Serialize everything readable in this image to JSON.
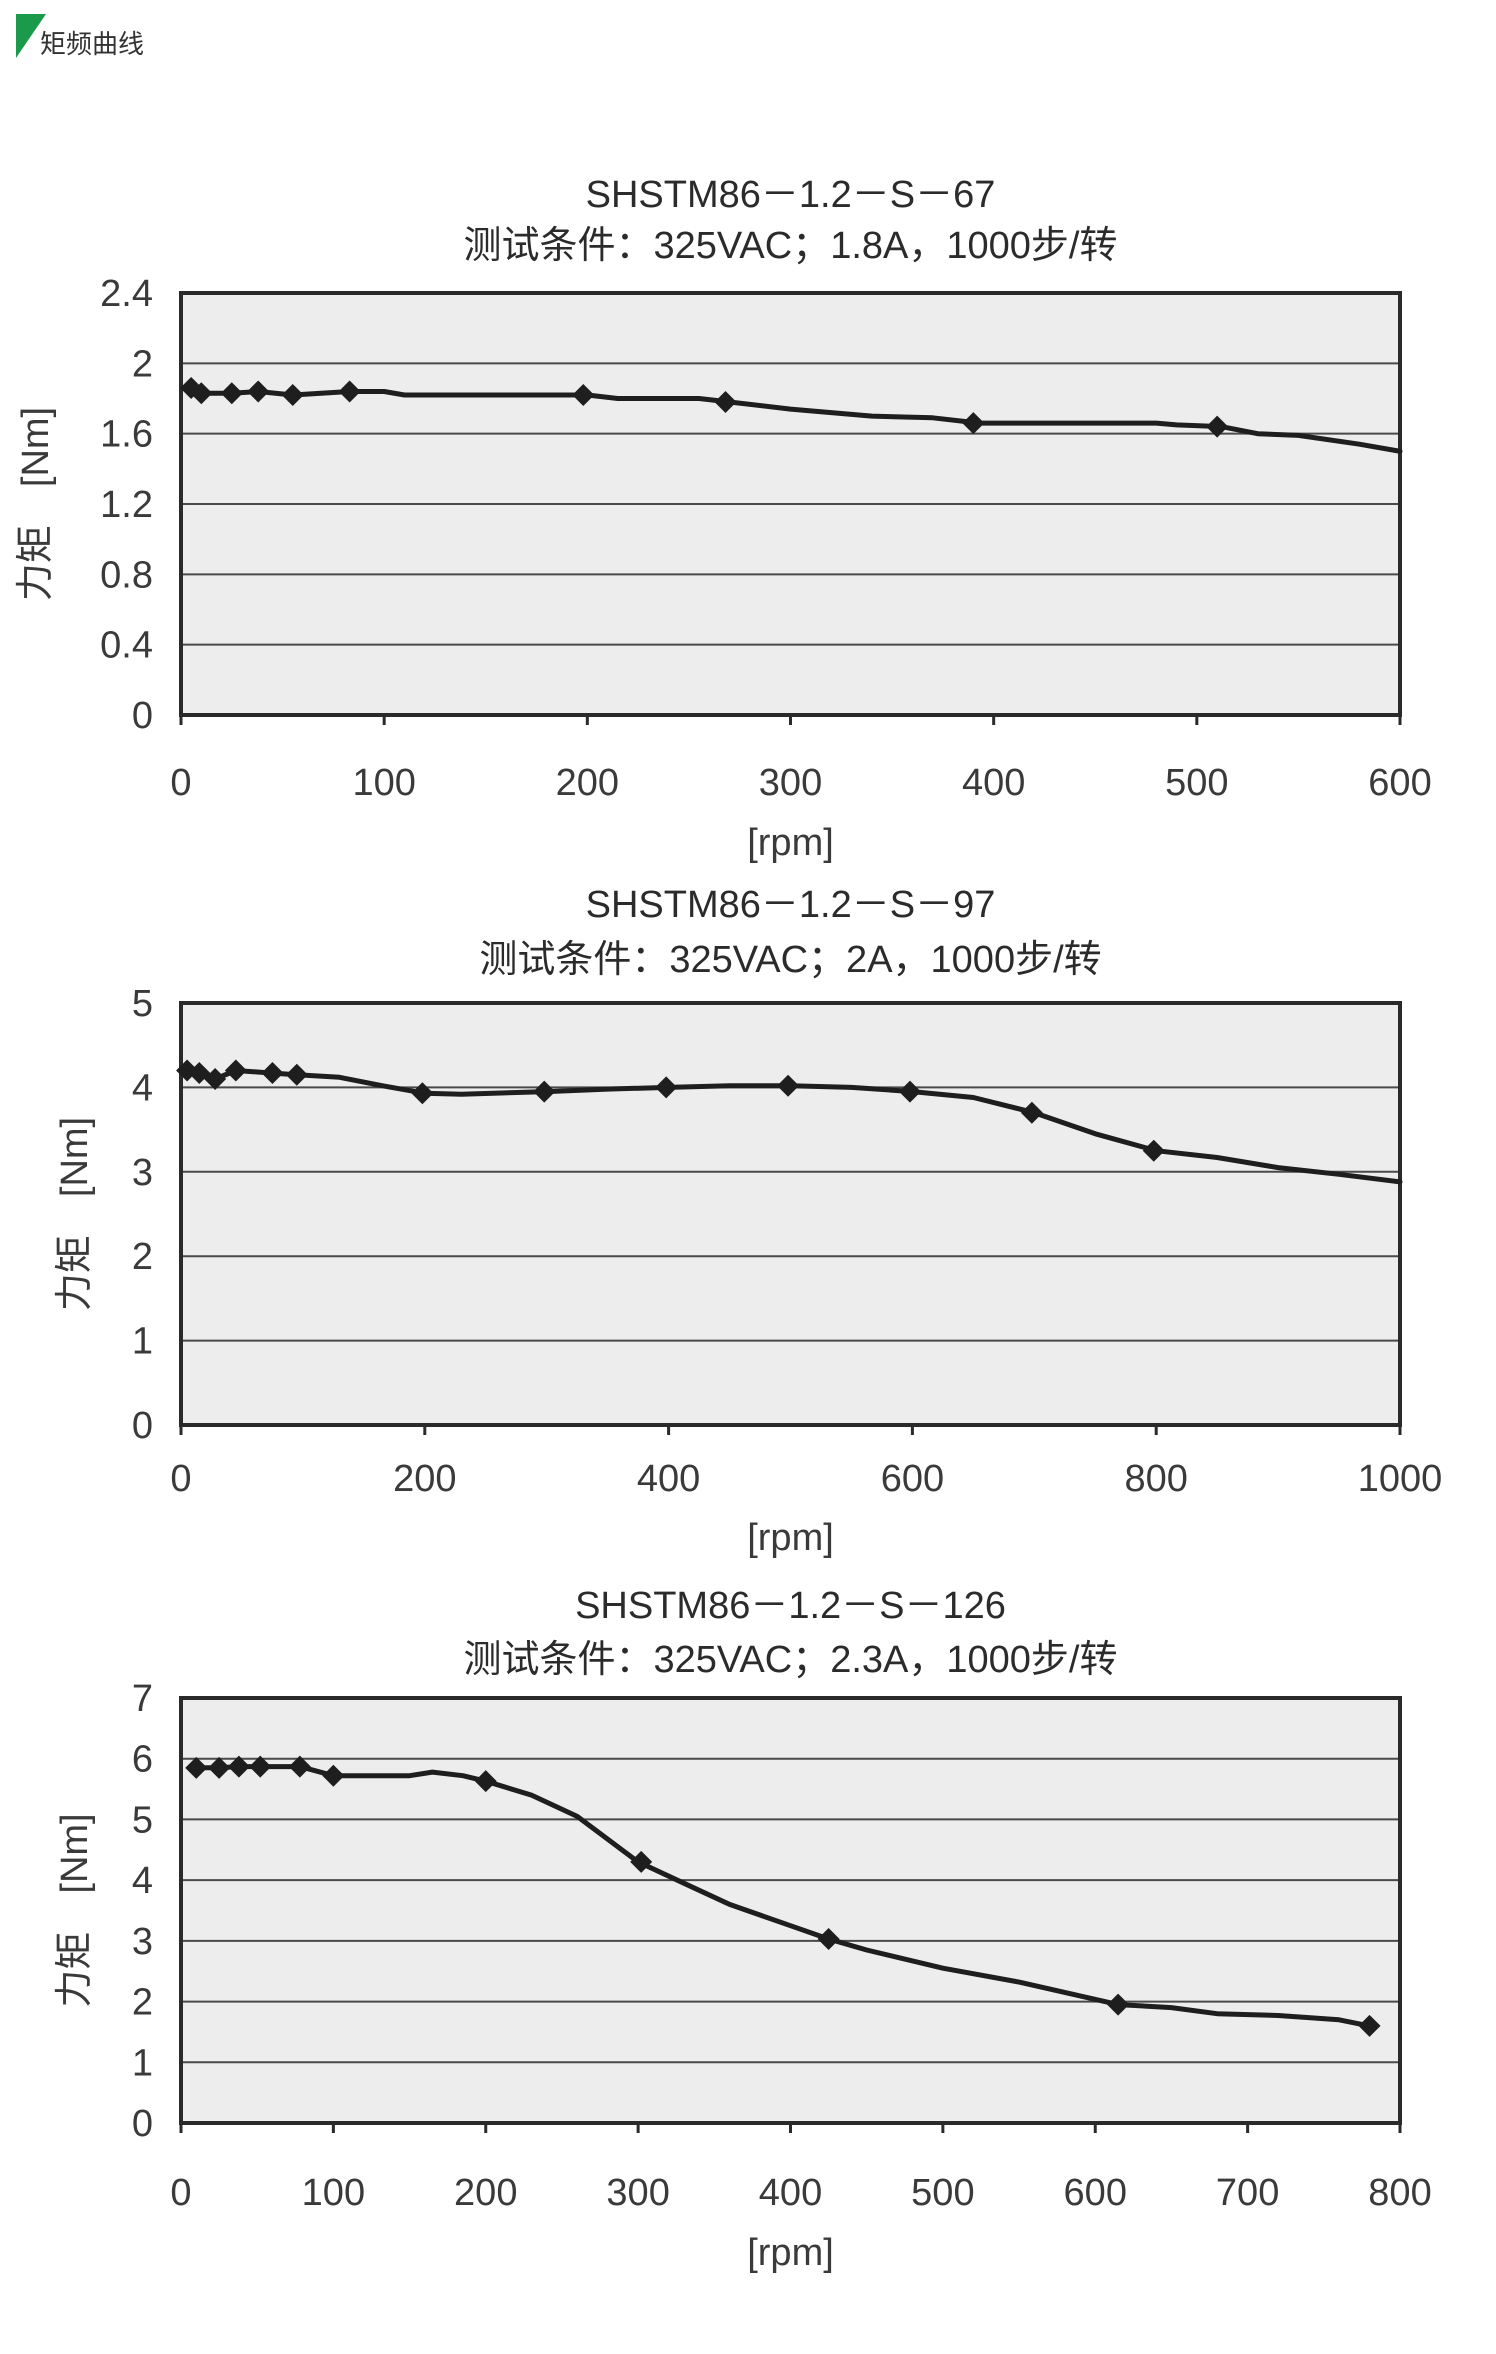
{
  "header": {
    "title": "矩频曲线",
    "accent": "#1c9a4b"
  },
  "style": {
    "plot_bg": "#ededed",
    "frame": "#2a2a2a",
    "grid": "#4a4a4a",
    "line": "#1e1e1e"
  },
  "chart_data": [
    {
      "type": "line",
      "title": "SHSTM86－1.2－S－67",
      "subtitle": "测试条件：325VAC；1.8A，1000步/转",
      "xlabel": "[rpm]",
      "ylabel": "力矩　[Nm]",
      "xlim": [
        0,
        600
      ],
      "ylim": [
        0,
        2.4
      ],
      "xticks": [
        0,
        100,
        200,
        300,
        400,
        500,
        600
      ],
      "yticks": [
        0,
        0.4,
        0.8,
        1.2,
        1.6,
        2,
        2.4
      ],
      "ytick_labels": [
        "0",
        "0.4",
        "0.8",
        "1.2",
        "1.6",
        "2",
        "2.4"
      ],
      "grid": true,
      "series": [
        {
          "line": [
            [
              5,
              1.86
            ],
            [
              10,
              1.83
            ],
            [
              25,
              1.83
            ],
            [
              38,
              1.84
            ],
            [
              55,
              1.82
            ],
            [
              83,
              1.84
            ],
            [
              100,
              1.84
            ],
            [
              110,
              1.82
            ],
            [
              200,
              1.82
            ],
            [
              215,
              1.8
            ],
            [
              255,
              1.8
            ],
            [
              270,
              1.78
            ],
            [
              300,
              1.74
            ],
            [
              340,
              1.7
            ],
            [
              370,
              1.69
            ],
            [
              393,
              1.66
            ],
            [
              480,
              1.66
            ],
            [
              490,
              1.65
            ],
            [
              512,
              1.64
            ],
            [
              530,
              1.6
            ],
            [
              550,
              1.59
            ],
            [
              580,
              1.54
            ],
            [
              600,
              1.5
            ]
          ],
          "markers": [
            [
              5,
              1.86
            ],
            [
              10,
              1.83
            ],
            [
              25,
              1.83
            ],
            [
              38,
              1.84
            ],
            [
              55,
              1.82
            ],
            [
              83,
              1.84
            ],
            [
              198,
              1.82
            ],
            [
              268,
              1.78
            ],
            [
              390,
              1.66
            ],
            [
              510,
              1.64
            ]
          ]
        }
      ]
    },
    {
      "type": "line",
      "title": "SHSTM86－1.2－S－97",
      "subtitle": "测试条件：325VAC；2A，1000步/转",
      "xlabel": "[rpm]",
      "ylabel": "力矩　[Nm]",
      "xlim": [
        0,
        1000
      ],
      "ylim": [
        0,
        5
      ],
      "xticks": [
        0,
        200,
        400,
        600,
        800,
        1000
      ],
      "yticks": [
        0,
        1,
        2,
        3,
        4,
        5
      ],
      "ytick_labels": [
        "0",
        "1",
        "2",
        "3",
        "4",
        "5"
      ],
      "grid": true,
      "series": [
        {
          "line": [
            [
              5,
              4.2
            ],
            [
              15,
              4.17
            ],
            [
              28,
              4.1
            ],
            [
              45,
              4.2
            ],
            [
              75,
              4.17
            ],
            [
              95,
              4.15
            ],
            [
              130,
              4.12
            ],
            [
              165,
              4.02
            ],
            [
              200,
              3.93
            ],
            [
              230,
              3.92
            ],
            [
              300,
              3.95
            ],
            [
              350,
              3.98
            ],
            [
              400,
              4.0
            ],
            [
              450,
              4.02
            ],
            [
              500,
              4.02
            ],
            [
              550,
              4.0
            ],
            [
              600,
              3.95
            ],
            [
              650,
              3.88
            ],
            [
              700,
              3.7
            ],
            [
              750,
              3.45
            ],
            [
              800,
              3.25
            ],
            [
              850,
              3.17
            ],
            [
              900,
              3.05
            ],
            [
              950,
              2.97
            ],
            [
              1000,
              2.88
            ]
          ],
          "markers": [
            [
              5,
              4.2
            ],
            [
              15,
              4.17
            ],
            [
              28,
              4.1
            ],
            [
              45,
              4.2
            ],
            [
              75,
              4.17
            ],
            [
              95,
              4.15
            ],
            [
              198,
              3.93
            ],
            [
              298,
              3.95
            ],
            [
              398,
              4.0
            ],
            [
              498,
              4.02
            ],
            [
              598,
              3.95
            ],
            [
              698,
              3.7
            ],
            [
              798,
              3.25
            ]
          ]
        }
      ]
    },
    {
      "type": "line",
      "title": "SHSTM86－1.2－S－126",
      "subtitle": "测试条件：325VAC；2.3A，1000步/转",
      "xlabel": "[rpm]",
      "ylabel": "力矩　[Nm]",
      "xlim": [
        0,
        800
      ],
      "ylim": [
        0,
        7
      ],
      "xticks": [
        0,
        100,
        200,
        300,
        400,
        500,
        600,
        700,
        800
      ],
      "yticks": [
        0,
        1,
        2,
        3,
        4,
        5,
        6,
        7
      ],
      "ytick_labels": [
        "0",
        "1",
        "2",
        "3",
        "4",
        "5",
        "6",
        "7"
      ],
      "grid": true,
      "series": [
        {
          "line": [
            [
              10,
              5.85
            ],
            [
              25,
              5.85
            ],
            [
              38,
              5.87
            ],
            [
              52,
              5.87
            ],
            [
              78,
              5.87
            ],
            [
              100,
              5.72
            ],
            [
              115,
              5.72
            ],
            [
              150,
              5.72
            ],
            [
              165,
              5.78
            ],
            [
              185,
              5.72
            ],
            [
              200,
              5.63
            ],
            [
              230,
              5.4
            ],
            [
              260,
              5.05
            ],
            [
              300,
              4.3
            ],
            [
              330,
              3.95
            ],
            [
              360,
              3.6
            ],
            [
              400,
              3.25
            ],
            [
              425,
              3.03
            ],
            [
              450,
              2.85
            ],
            [
              500,
              2.55
            ],
            [
              550,
              2.32
            ],
            [
              615,
              1.95
            ],
            [
              650,
              1.9
            ],
            [
              680,
              1.8
            ],
            [
              720,
              1.77
            ],
            [
              760,
              1.7
            ],
            [
              780,
              1.6
            ]
          ],
          "markers": [
            [
              10,
              5.85
            ],
            [
              25,
              5.85
            ],
            [
              38,
              5.87
            ],
            [
              52,
              5.87
            ],
            [
              78,
              5.87
            ],
            [
              100,
              5.72
            ],
            [
              200,
              5.63
            ],
            [
              302,
              4.3
            ],
            [
              425,
              3.03
            ],
            [
              615,
              1.95
            ],
            [
              780,
              1.6
            ]
          ]
        }
      ]
    }
  ]
}
